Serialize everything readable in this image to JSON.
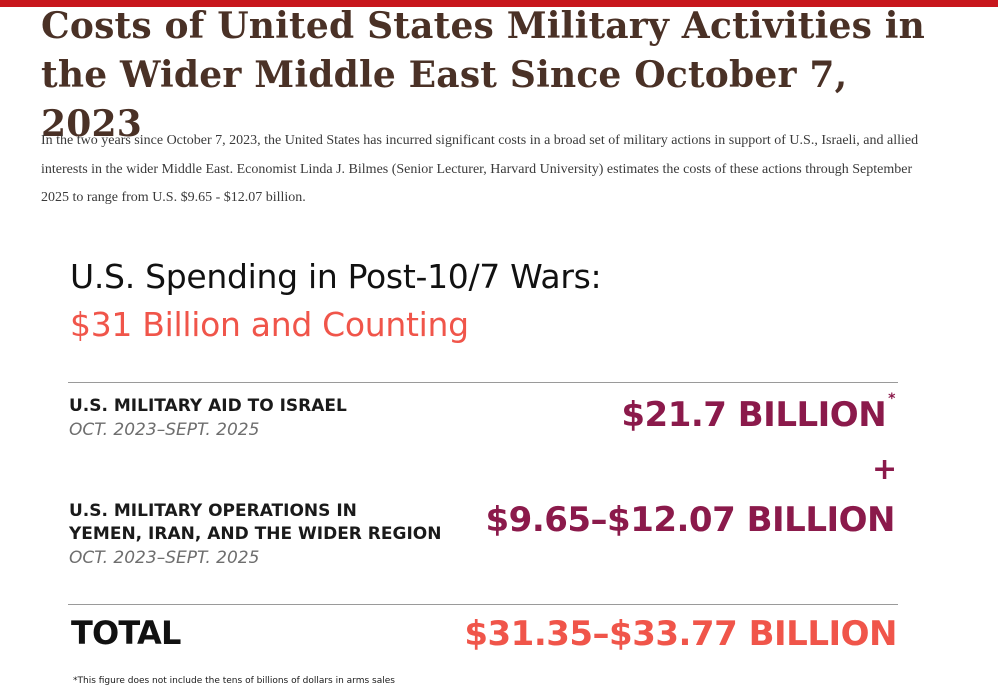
{
  "page": {
    "title": "Costs of United States Military Activities in the Wider Middle East Since October 7, 2023",
    "intro": "In the two years since October 7, 2023, the United States has incurred significant costs in a broad set of military actions in support of U.S., Israeli, and allied interests in the wider Middle East. Economist Linda J. Bilmes (Senior Lecturer, Harvard University) estimates the costs of these actions through September 2025 to range from U.S. $9.65 - $12.07 billion."
  },
  "infographic": {
    "title": "U.S. Spending in Post-10/7 Wars:",
    "subtitle": "$31 Billion and Counting",
    "rows": [
      {
        "label_line1": "U.S. MILITARY AID TO ISRAEL",
        "date": "OCT. 2023–SEPT. 2025",
        "amount": "$21.7 BILLION",
        "footnote_mark": "*"
      },
      {
        "label_line1": "U.S. MILITARY OPERATIONS IN",
        "label_line2": "YEMEN, IRAN, AND THE WIDER REGION",
        "date": "OCT. 2023–SEPT. 2025",
        "amount": "$9.65–$12.07 BILLION"
      }
    ],
    "plus": "+",
    "total_label": "TOTAL",
    "total_amount": "$31.35–$33.77 BILLION",
    "footnote": "*This figure does not include the tens of billions of dollars in arms sales"
  },
  "colors": {
    "top_bar": "#c8161d",
    "title": "#4a3126",
    "accent_coral": "#f0554a",
    "accent_maroon": "#8b1a4b"
  }
}
